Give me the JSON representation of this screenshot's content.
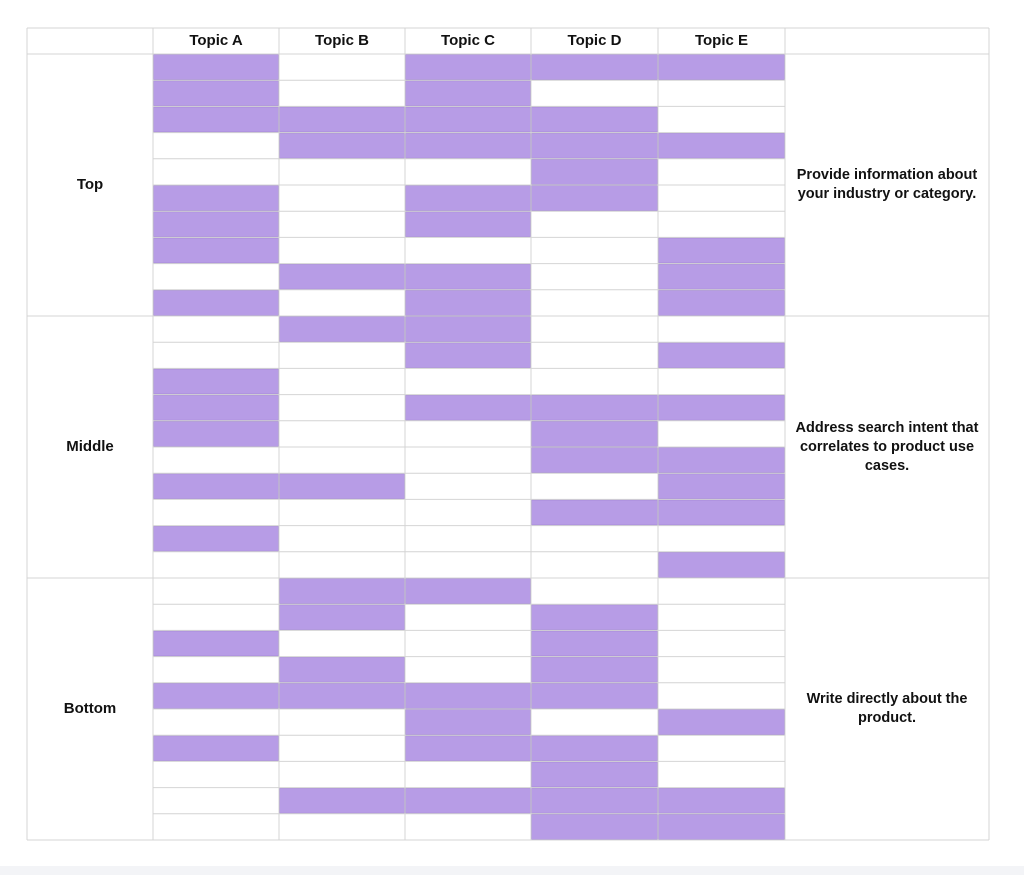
{
  "chart_data": {
    "type": "heatmap",
    "columns": [
      "Topic A",
      "Topic B",
      "Topic C",
      "Topic D",
      "Topic E"
    ],
    "stages": [
      {
        "label": "Top",
        "description": "Provide information about your industry or category.",
        "rows": [
          [
            1,
            0,
            1,
            1,
            1
          ],
          [
            1,
            0,
            1,
            0,
            0
          ],
          [
            1,
            1,
            1,
            1,
            0
          ],
          [
            0,
            1,
            1,
            1,
            1
          ],
          [
            0,
            0,
            0,
            1,
            0
          ],
          [
            1,
            0,
            1,
            1,
            0
          ],
          [
            1,
            0,
            1,
            0,
            0
          ],
          [
            1,
            0,
            0,
            0,
            1
          ],
          [
            0,
            1,
            1,
            0,
            1
          ],
          [
            1,
            0,
            1,
            0,
            1
          ]
        ]
      },
      {
        "label": "Middle",
        "description": "Address search intent that correlates to product use cases.",
        "rows": [
          [
            0,
            1,
            1,
            0,
            0
          ],
          [
            0,
            0,
            1,
            0,
            1
          ],
          [
            1,
            0,
            0,
            0,
            0
          ],
          [
            1,
            0,
            1,
            1,
            1
          ],
          [
            1,
            0,
            0,
            1,
            0
          ],
          [
            0,
            0,
            0,
            1,
            1
          ],
          [
            1,
            1,
            0,
            0,
            1
          ],
          [
            0,
            0,
            0,
            1,
            1
          ],
          [
            1,
            0,
            0,
            0,
            0
          ],
          [
            0,
            0,
            0,
            0,
            1
          ]
        ]
      },
      {
        "label": "Bottom",
        "description": "Write directly about the product.",
        "rows": [
          [
            0,
            1,
            1,
            0,
            0
          ],
          [
            0,
            1,
            0,
            1,
            0
          ],
          [
            1,
            0,
            0,
            1,
            0
          ],
          [
            0,
            1,
            0,
            1,
            0
          ],
          [
            1,
            1,
            1,
            1,
            0
          ],
          [
            0,
            0,
            1,
            0,
            1
          ],
          [
            1,
            0,
            1,
            1,
            0
          ],
          [
            0,
            0,
            0,
            1,
            0
          ],
          [
            0,
            1,
            1,
            1,
            1
          ],
          [
            0,
            0,
            0,
            1,
            1
          ]
        ]
      }
    ]
  },
  "colors": {
    "filled": "#b79ce6",
    "empty": "#ffffff",
    "grid_line": "#d4d4d4",
    "filled_border": "#a58ad6"
  }
}
